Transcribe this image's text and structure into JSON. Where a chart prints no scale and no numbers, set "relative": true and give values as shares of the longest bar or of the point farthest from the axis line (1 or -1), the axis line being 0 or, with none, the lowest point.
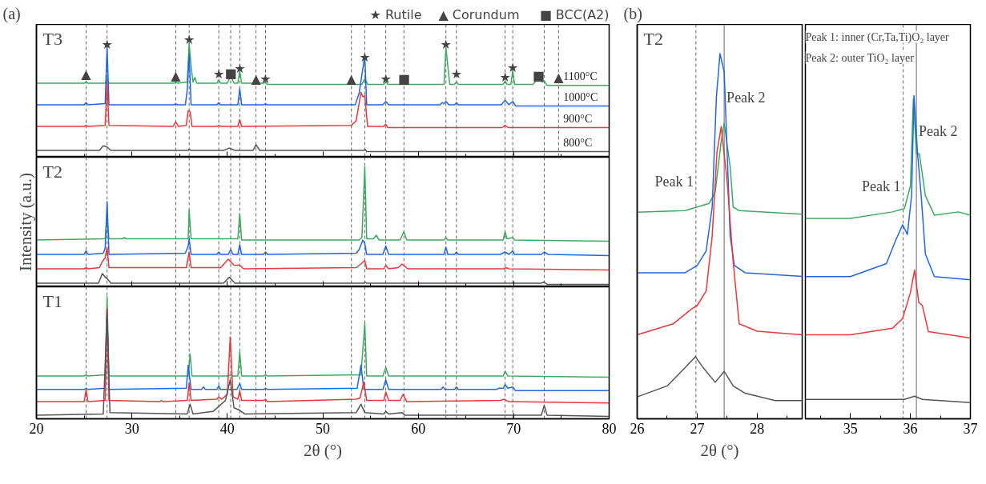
{
  "chart_data": [
    {
      "type": "line",
      "title": "(a)",
      "subtitle": "T3",
      "relative": true,
      "xlim": [
        20,
        80
      ],
      "xticks": [
        20,
        {
          "value": 25,
          "label": null
        },
        30,
        {
          "value": 35,
          "label": null
        },
        40,
        {
          "value": 45,
          "label": null
        },
        50,
        {
          "value": 55,
          "label": null
        },
        60,
        {
          "value": 65,
          "label": null
        },
        70,
        {
          "value": 75,
          "label": null
        },
        80
      ],
      "tick_labels": false,
      "annotations": [
        "★ Rutile",
        "▲ Corundum",
        "■ BCC(A2)",
        {
          "text": "▲",
          "x": 25.2,
          "y": 0.73
        },
        {
          "text": "★",
          "x": 27.4,
          "y": 0.99
        },
        {
          "text": "▲",
          "x": 34.6,
          "y": 0.72
        },
        {
          "text": "★",
          "x": 36.0,
          "y": 1.03
        },
        {
          "text": "★",
          "x": 39.1,
          "y": 0.73
        },
        {
          "text": "■",
          "x": 40.35,
          "y": 0.74
        },
        {
          "text": "★",
          "x": 41.3,
          "y": 0.78
        },
        {
          "text": "▲",
          "x": 43.0,
          "y": 0.69
        },
        {
          "text": "★",
          "x": 44.0,
          "y": 0.69
        },
        {
          "text": "▲",
          "x": 53.0,
          "y": 0.69
        },
        {
          "text": "★",
          "x": 54.4,
          "y": 0.88
        },
        {
          "text": "★",
          "x": 56.6,
          "y": 0.69
        },
        {
          "text": "■",
          "x": 58.5,
          "y": 0.69
        },
        {
          "text": "★",
          "x": 62.9,
          "y": 0.99
        },
        {
          "text": "★",
          "x": 64.0,
          "y": 0.73
        },
        {
          "text": "★",
          "x": 69.1,
          "y": 0.7
        },
        {
          "text": "★",
          "x": 69.9,
          "y": 0.79
        },
        {
          "text": "■",
          "x": 72.6,
          "y": 0.72
        },
        {
          "text": "▲",
          "x": 74.7,
          "y": 0.7
        }
      ],
      "ref_lines": [
        {
          "axis": "x",
          "value": 25.2,
          "line_style": "dashed"
        },
        {
          "axis": "x",
          "value": 27.4,
          "line_style": "dashed"
        },
        {
          "axis": "x",
          "value": 34.6,
          "line_style": "dashed"
        },
        {
          "axis": "x",
          "value": 36.0,
          "line_style": "dashed"
        },
        {
          "axis": "x",
          "value": 39.1,
          "line_style": "dashed"
        },
        {
          "axis": "x",
          "value": 40.35,
          "line_style": "dashed"
        },
        {
          "axis": "x",
          "value": 41.3,
          "line_style": "dashed"
        },
        {
          "axis": "x",
          "value": 43.0,
          "line_style": "dashed"
        },
        {
          "axis": "x",
          "value": 44.0,
          "line_style": "dashed"
        },
        {
          "axis": "x",
          "value": 53.0,
          "line_style": "dashed"
        },
        {
          "axis": "x",
          "value": 54.4,
          "line_style": "dashed"
        },
        {
          "axis": "x",
          "value": 56.6,
          "line_style": "dashed"
        },
        {
          "axis": "x",
          "value": 58.5,
          "line_style": "dashed"
        },
        {
          "axis": "x",
          "value": 62.9,
          "line_style": "dashed"
        },
        {
          "axis": "x",
          "value": 64.0,
          "line_style": "dashed"
        },
        {
          "axis": "x",
          "value": 69.1,
          "line_style": "dashed"
        },
        {
          "axis": "x",
          "value": 69.9,
          "line_style": "dashed"
        },
        {
          "axis": "x",
          "value": 73.2,
          "line_style": "dashed"
        },
        {
          "axis": "x",
          "value": 74.7,
          "line_style": "dashed"
        }
      ],
      "series": [
        {
          "name": "1100°C",
          "color": "#3daa5f",
          "x": [
            20,
            25.0,
            25.2,
            25.4,
            27.2,
            27.4,
            27.6,
            34.4,
            34.6,
            34.8,
            35.8,
            36.0,
            36.2,
            36.4,
            36.6,
            36.8,
            38.9,
            39.1,
            39.3,
            40.0,
            40.35,
            40.7,
            41.1,
            41.3,
            41.5,
            43.8,
            44.0,
            44.2,
            54.1,
            54.4,
            54.7,
            56.4,
            56.6,
            56.8,
            62.7,
            62.9,
            63.1,
            63.3,
            63.8,
            64.0,
            64.2,
            68.9,
            69.1,
            69.3,
            69.7,
            69.9,
            70.1,
            72.0,
            72.6,
            73.0,
            73.2,
            73.5,
            80
          ],
          "values": [
            0.65,
            0.65,
            0.66,
            0.65,
            0.65,
            0.69,
            0.65,
            0.65,
            0.66,
            0.65,
            0.66,
            1.0,
            0.8,
            0.66,
            0.7,
            0.65,
            0.65,
            0.68,
            0.65,
            0.65,
            0.71,
            0.65,
            0.65,
            0.76,
            0.65,
            0.65,
            0.66,
            0.64,
            0.64,
            0.69,
            0.64,
            0.64,
            0.67,
            0.64,
            0.64,
            0.96,
            0.8,
            0.64,
            0.64,
            0.66,
            0.64,
            0.64,
            0.67,
            0.64,
            0.64,
            0.76,
            0.64,
            0.64,
            0.69,
            0.66,
            0.67,
            0.63,
            0.63
          ]
        },
        {
          "name": "1000°C",
          "color": "#2166e0",
          "x": [
            20,
            25.0,
            25.2,
            25.4,
            27.2,
            27.4,
            27.6,
            34.4,
            34.6,
            34.8,
            35.6,
            35.8,
            36.0,
            36.2,
            38.9,
            39.1,
            39.3,
            41.1,
            41.3,
            41.5,
            43.8,
            44.0,
            44.2,
            53.4,
            53.8,
            54.4,
            54.6,
            56.3,
            56.6,
            56.9,
            62.3,
            62.5,
            62.7,
            62.9,
            63.2,
            63.8,
            64.0,
            64.2,
            68.7,
            69.1,
            69.5,
            69.9,
            70.2,
            80
          ],
          "values": [
            0.46,
            0.46,
            0.48,
            0.46,
            0.47,
            0.97,
            0.46,
            0.46,
            0.47,
            0.46,
            0.46,
            0.59,
            0.91,
            0.46,
            0.46,
            0.48,
            0.46,
            0.46,
            0.6,
            0.46,
            0.46,
            0.47,
            0.46,
            0.46,
            0.56,
            0.89,
            0.46,
            0.46,
            0.49,
            0.46,
            0.46,
            0.48,
            0.47,
            0.49,
            0.46,
            0.46,
            0.48,
            0.46,
            0.46,
            0.5,
            0.46,
            0.49,
            0.45,
            0.45
          ]
        },
        {
          "name": "900°C",
          "color": "#e8383d",
          "x": [
            20,
            25.0,
            25.2,
            25.4,
            27.2,
            27.4,
            27.6,
            34.3,
            34.6,
            34.9,
            35.7,
            35.9,
            36.1,
            36.3,
            38.9,
            39.1,
            39.3,
            41.1,
            41.3,
            41.5,
            53.0,
            53.5,
            54.0,
            54.2,
            54.4,
            54.7,
            56.4,
            56.6,
            56.8,
            68.8,
            69.1,
            69.4,
            80
          ],
          "values": [
            0.27,
            0.27,
            0.28,
            0.27,
            0.28,
            0.66,
            0.28,
            0.27,
            0.31,
            0.27,
            0.28,
            0.41,
            0.4,
            0.27,
            0.27,
            0.28,
            0.27,
            0.27,
            0.33,
            0.27,
            0.28,
            0.32,
            0.57,
            0.53,
            0.54,
            0.27,
            0.27,
            0.29,
            0.26,
            0.26,
            0.28,
            0.26,
            0.26
          ]
        },
        {
          "name": "800°C",
          "color": "#555555",
          "x": [
            20,
            26.6,
            27.0,
            27.4,
            27.8,
            35.9,
            36.0,
            36.2,
            39.6,
            40.2,
            40.8,
            42.7,
            43.0,
            43.4,
            54.3,
            54.45,
            54.6,
            80
          ],
          "values": [
            0.06,
            0.06,
            0.1,
            0.09,
            0.06,
            0.06,
            0.07,
            0.06,
            0.06,
            0.08,
            0.06,
            0.06,
            0.11,
            0.06,
            0.06,
            0.07,
            0.05,
            0.05
          ]
        }
      ]
    },
    {
      "type": "line",
      "subtitle": "T2",
      "ylabel": "Intensity (a.u.)",
      "relative": true,
      "xlim": [
        20,
        80
      ],
      "xticks": [
        20,
        {
          "value": 25,
          "label": null
        },
        30,
        {
          "value": 35,
          "label": null
        },
        40,
        {
          "value": 45,
          "label": null
        },
        50,
        {
          "value": 55,
          "label": null
        },
        60,
        {
          "value": 65,
          "label": null
        },
        70,
        {
          "value": 75,
          "label": null
        },
        80
      ],
      "tick_labels": false,
      "ref_lines": [
        {
          "axis": "x",
          "value": 25.2,
          "line_style": "dashed"
        },
        {
          "axis": "x",
          "value": 27.4,
          "line_style": "dashed"
        },
        {
          "axis": "x",
          "value": 34.6,
          "line_style": "dashed"
        },
        {
          "axis": "x",
          "value": 36.0,
          "line_style": "dashed"
        },
        {
          "axis": "x",
          "value": 39.1,
          "line_style": "dashed"
        },
        {
          "axis": "x",
          "value": 40.35,
          "line_style": "dashed"
        },
        {
          "axis": "x",
          "value": 41.3,
          "line_style": "dashed"
        },
        {
          "axis": "x",
          "value": 43.0,
          "line_style": "dashed"
        },
        {
          "axis": "x",
          "value": 44.0,
          "line_style": "dashed"
        },
        {
          "axis": "x",
          "value": 53.0,
          "line_style": "dashed"
        },
        {
          "axis": "x",
          "value": 54.4,
          "line_style": "dashed"
        },
        {
          "axis": "x",
          "value": 56.6,
          "line_style": "dashed"
        },
        {
          "axis": "x",
          "value": 58.5,
          "line_style": "dashed"
        },
        {
          "axis": "x",
          "value": 62.9,
          "line_style": "dashed"
        },
        {
          "axis": "x",
          "value": 64.0,
          "line_style": "dashed"
        },
        {
          "axis": "x",
          "value": 69.1,
          "line_style": "dashed"
        },
        {
          "axis": "x",
          "value": 69.9,
          "line_style": "dashed"
        },
        {
          "axis": "x",
          "value": 73.2,
          "line_style": "dashed"
        }
      ],
      "series": [
        {
          "color": "#3daa5f",
          "x": [
            20,
            27.2,
            27.4,
            27.6,
            29.0,
            29.2,
            29.4,
            35.9,
            36.0,
            36.2,
            41.1,
            41.3,
            41.5,
            53.8,
            54.1,
            54.4,
            54.6,
            55.3,
            55.6,
            55.9,
            58.1,
            58.5,
            58.8,
            62.7,
            62.9,
            63.1,
            68.9,
            69.1,
            69.3,
            69.9,
            70.1,
            80
          ],
          "values": [
            0.39,
            0.4,
            0.56,
            0.4,
            0.4,
            0.41,
            0.4,
            0.4,
            0.64,
            0.4,
            0.4,
            0.61,
            0.39,
            0.39,
            0.41,
            1.0,
            0.4,
            0.4,
            0.43,
            0.39,
            0.39,
            0.46,
            0.39,
            0.39,
            0.41,
            0.39,
            0.39,
            0.46,
            0.4,
            0.41,
            0.39,
            0.38
          ]
        },
        {
          "color": "#2166e0",
          "x": [
            20,
            25.0,
            25.2,
            25.4,
            27.0,
            27.2,
            27.4,
            27.6,
            35.6,
            35.9,
            36.0,
            36.2,
            38.9,
            39.1,
            39.3,
            40.1,
            40.35,
            40.6,
            41.1,
            41.3,
            41.5,
            43.8,
            44.0,
            44.2,
            53.5,
            53.8,
            54.2,
            54.4,
            54.6,
            56.3,
            56.6,
            56.9,
            62.7,
            62.9,
            63.1,
            63.8,
            64.0,
            64.2,
            68.6,
            69.1,
            69.5,
            69.9,
            70.1,
            72.9,
            73.2,
            73.6,
            80
          ],
          "values": [
            0.27,
            0.27,
            0.3,
            0.27,
            0.28,
            0.32,
            0.71,
            0.27,
            0.28,
            0.34,
            0.4,
            0.27,
            0.27,
            0.29,
            0.27,
            0.27,
            0.31,
            0.27,
            0.27,
            0.35,
            0.27,
            0.27,
            0.29,
            0.27,
            0.28,
            0.31,
            0.39,
            0.36,
            0.27,
            0.27,
            0.34,
            0.27,
            0.27,
            0.33,
            0.27,
            0.27,
            0.29,
            0.27,
            0.27,
            0.29,
            0.27,
            0.3,
            0.27,
            0.27,
            0.29,
            0.27,
            0.26
          ]
        },
        {
          "color": "#e8383d",
          "x": [
            20,
            25.0,
            25.2,
            25.4,
            26.6,
            26.9,
            27.2,
            27.4,
            27.6,
            35.7,
            36.0,
            36.2,
            39.3,
            40.1,
            40.7,
            41.3,
            41.7,
            53.5,
            54.0,
            54.4,
            54.6,
            56.4,
            56.6,
            56.9,
            57.9,
            58.3,
            58.9,
            69.0,
            69.2,
            69.5,
            80
          ],
          "values": [
            0.15,
            0.15,
            0.16,
            0.15,
            0.16,
            0.21,
            0.24,
            0.33,
            0.16,
            0.16,
            0.29,
            0.16,
            0.16,
            0.23,
            0.18,
            0.18,
            0.15,
            0.16,
            0.19,
            0.22,
            0.15,
            0.15,
            0.18,
            0.15,
            0.16,
            0.19,
            0.15,
            0.15,
            0.16,
            0.15,
            0.14
          ]
        },
        {
          "color": "#555555",
          "x": [
            20,
            26.5,
            26.9,
            27.2,
            27.4,
            27.8,
            39.6,
            40.2,
            40.8,
            54.3,
            54.45,
            54.6,
            72.9,
            73.2,
            73.5,
            80
          ],
          "values": [
            0.03,
            0.03,
            0.11,
            0.08,
            0.07,
            0.03,
            0.03,
            0.08,
            0.03,
            0.03,
            0.04,
            0.03,
            0.03,
            0.04,
            0.02,
            0.02
          ]
        }
      ]
    },
    {
      "type": "line",
      "subtitle": "T1",
      "xlabel": "2θ (°)",
      "relative": true,
      "xlim": [
        20,
        80
      ],
      "xticks": [
        20,
        {
          "value": 25,
          "label": null
        },
        30,
        {
          "value": 35,
          "label": null
        },
        40,
        {
          "value": 45,
          "label": null
        },
        50,
        {
          "value": 55,
          "label": null
        },
        60,
        {
          "value": 65,
          "label": null
        },
        70,
        {
          "value": 75,
          "label": null
        },
        80
      ],
      "tick_labels": "x",
      "ref_lines": [
        {
          "axis": "x",
          "value": 25.2,
          "line_style": "dashed"
        },
        {
          "axis": "x",
          "value": 27.4,
          "line_style": "dashed"
        },
        {
          "axis": "x",
          "value": 34.6,
          "line_style": "dashed"
        },
        {
          "axis": "x",
          "value": 36.0,
          "line_style": "dashed"
        },
        {
          "axis": "x",
          "value": 39.1,
          "line_style": "dashed"
        },
        {
          "axis": "x",
          "value": 40.35,
          "line_style": "dashed"
        },
        {
          "axis": "x",
          "value": 41.3,
          "line_style": "dashed"
        },
        {
          "axis": "x",
          "value": 43.0,
          "line_style": "dashed"
        },
        {
          "axis": "x",
          "value": 44.0,
          "line_style": "dashed"
        },
        {
          "axis": "x",
          "value": 53.0,
          "line_style": "dashed"
        },
        {
          "axis": "x",
          "value": 54.4,
          "line_style": "dashed"
        },
        {
          "axis": "x",
          "value": 56.6,
          "line_style": "dashed"
        },
        {
          "axis": "x",
          "value": 58.5,
          "line_style": "dashed"
        },
        {
          "axis": "x",
          "value": 62.9,
          "line_style": "dashed"
        },
        {
          "axis": "x",
          "value": 64.0,
          "line_style": "dashed"
        },
        {
          "axis": "x",
          "value": 69.1,
          "line_style": "dashed"
        },
        {
          "axis": "x",
          "value": 69.9,
          "line_style": "dashed"
        },
        {
          "axis": "x",
          "value": 73.2,
          "line_style": "dashed"
        }
      ],
      "series": [
        {
          "color": "#3daa5f",
          "x": [
            20,
            25.0,
            25.2,
            25.4,
            27.2,
            27.4,
            27.6,
            35.9,
            36.1,
            36.3,
            40.1,
            40.35,
            40.6,
            41.1,
            41.3,
            41.5,
            43.8,
            44.0,
            44.2,
            54.0,
            54.4,
            54.6,
            56.3,
            56.6,
            56.9,
            68.9,
            69.1,
            69.4,
            80
          ],
          "values": [
            0.35,
            0.35,
            0.36,
            0.35,
            0.36,
            1.0,
            0.35,
            0.35,
            0.53,
            0.35,
            0.35,
            0.36,
            0.35,
            0.35,
            0.55,
            0.35,
            0.35,
            0.36,
            0.35,
            0.36,
            0.78,
            0.35,
            0.35,
            0.42,
            0.35,
            0.35,
            0.39,
            0.35,
            0.34
          ]
        },
        {
          "color": "#2166e0",
          "x": [
            20,
            25.0,
            25.2,
            25.4,
            27.2,
            27.4,
            27.6,
            35.7,
            35.9,
            36.2,
            37.3,
            37.5,
            37.7,
            38.9,
            39.1,
            39.3,
            41.0,
            41.3,
            41.5,
            43.8,
            44.0,
            44.2,
            53.6,
            54.0,
            54.3,
            56.3,
            56.6,
            56.9,
            62.4,
            62.6,
            62.8,
            63.8,
            64.0,
            64.2,
            68.2,
            68.4,
            68.9,
            69.1,
            69.4,
            69.9,
            70.2,
            80
          ],
          "values": [
            0.24,
            0.24,
            0.25,
            0.24,
            0.25,
            0.9,
            0.24,
            0.25,
            0.44,
            0.24,
            0.24,
            0.26,
            0.24,
            0.24,
            0.27,
            0.24,
            0.24,
            0.29,
            0.24,
            0.24,
            0.25,
            0.24,
            0.25,
            0.44,
            0.24,
            0.24,
            0.32,
            0.24,
            0.24,
            0.26,
            0.24,
            0.24,
            0.26,
            0.24,
            0.24,
            0.25,
            0.25,
            0.28,
            0.25,
            0.26,
            0.23,
            0.23
          ]
        },
        {
          "color": "#e8383d",
          "x": [
            20,
            25.0,
            25.2,
            25.4,
            27.2,
            27.4,
            27.6,
            32.9,
            33.1,
            33.3,
            35.8,
            36.0,
            36.2,
            38.9,
            39.1,
            39.4,
            40.0,
            40.3,
            40.6,
            41.1,
            41.3,
            41.5,
            43.8,
            44.0,
            44.2,
            53.5,
            53.9,
            54.3,
            54.6,
            56.4,
            56.6,
            56.9,
            58.1,
            58.4,
            58.8,
            68.6,
            69.0,
            69.5,
            80
          ],
          "values": [
            0.14,
            0.14,
            0.24,
            0.14,
            0.15,
            0.9,
            0.15,
            0.14,
            0.15,
            0.14,
            0.15,
            0.29,
            0.15,
            0.16,
            0.18,
            0.16,
            0.2,
            0.67,
            0.18,
            0.16,
            0.23,
            0.15,
            0.15,
            0.16,
            0.14,
            0.16,
            0.17,
            0.3,
            0.15,
            0.15,
            0.22,
            0.15,
            0.15,
            0.2,
            0.14,
            0.15,
            0.16,
            0.14,
            0.13
          ]
        },
        {
          "color": "#555555",
          "x": [
            20,
            27.0,
            27.4,
            27.7,
            35.8,
            36.1,
            36.4,
            38.5,
            39.8,
            40.3,
            40.7,
            41.3,
            41.8,
            53.5,
            54.0,
            54.4,
            56.4,
            56.6,
            56.9,
            58.3,
            58.6,
            72.9,
            73.2,
            73.5,
            80
          ],
          "values": [
            0.03,
            0.04,
            0.85,
            0.05,
            0.04,
            0.12,
            0.04,
            0.06,
            0.15,
            0.32,
            0.09,
            0.07,
            0.04,
            0.05,
            0.12,
            0.05,
            0.04,
            0.06,
            0.04,
            0.05,
            0.03,
            0.03,
            0.11,
            0.03,
            0.02
          ]
        }
      ]
    },
    {
      "type": "line",
      "title": "(b)",
      "subtitle": "T2",
      "xlabel": "2θ (°)",
      "relative": true,
      "xlim": [
        26,
        28.75
      ],
      "xticks": [
        26,
        {
          "value": 26.5,
          "label": null
        },
        27,
        {
          "value": 27.5,
          "label": null
        },
        28,
        {
          "value": 28.5,
          "label": null
        }
      ],
      "tick_labels": "x",
      "annotations": [
        {
          "text": "Peak 1",
          "x": 26.98,
          "y": 0.58
        },
        {
          "text": "Peak 2",
          "x": 27.45,
          "y": 0.81
        }
      ],
      "ref_lines": [
        {
          "axis": "x",
          "value": 26.98,
          "line_style": "dashed"
        },
        {
          "axis": "x",
          "value": 27.45,
          "line_style": "solid"
        }
      ],
      "series": [
        {
          "color": "#3daa5f",
          "x": [
            26,
            26.8,
            27.0,
            27.2,
            27.3,
            27.4,
            27.45,
            27.55,
            27.6,
            27.7,
            28.75
          ],
          "values": [
            0.566,
            0.57,
            0.58,
            0.59,
            0.62,
            0.76,
            0.81,
            0.69,
            0.58,
            0.57,
            0.56
          ]
        },
        {
          "color": "#2166e0",
          "x": [
            26,
            26.8,
            27.0,
            27.15,
            27.25,
            27.32,
            27.38,
            27.45,
            27.5,
            27.55,
            27.62,
            27.8,
            28.75
          ],
          "values": [
            0.4,
            0.4,
            0.42,
            0.46,
            0.58,
            0.88,
            1.0,
            0.95,
            0.73,
            0.5,
            0.42,
            0.4,
            0.39
          ]
        },
        {
          "color": "#e8383d",
          "x": [
            26,
            26.6,
            26.9,
            27.0,
            27.15,
            27.25,
            27.33,
            27.4,
            27.5,
            27.6,
            27.7,
            28.0,
            28.75
          ],
          "values": [
            0.23,
            0.26,
            0.3,
            0.31,
            0.35,
            0.5,
            0.73,
            0.8,
            0.65,
            0.43,
            0.26,
            0.24,
            0.23
          ]
        },
        {
          "color": "#555555",
          "x": [
            26,
            26.5,
            26.8,
            26.97,
            27.1,
            27.3,
            27.45,
            27.6,
            27.8,
            28.3,
            28.75
          ],
          "values": [
            0.06,
            0.09,
            0.14,
            0.17,
            0.14,
            0.1,
            0.13,
            0.09,
            0.07,
            0.05,
            0.05
          ]
        }
      ]
    },
    {
      "type": "line",
      "relative": true,
      "xlim": [
        34.25,
        37
      ],
      "xticks": [
        {
          "value": 34.5,
          "label": null
        },
        35,
        {
          "value": 35.5,
          "label": null
        },
        36,
        {
          "value": 36.5,
          "label": null
        },
        37
      ],
      "tick_labels": "x",
      "annotations": [
        "Peak 1: inner (Cr,Ta,Ti)O₂ layer",
        "Peak 2: outer TiO₂ layer",
        {
          "text": "Peak 1",
          "x": 35.88,
          "y": 0.65
        },
        {
          "text": "Peak 2",
          "x": 36.1,
          "y": 0.82
        }
      ],
      "ref_lines": [
        {
          "axis": "x",
          "value": 35.88,
          "line_style": "dashed"
        },
        {
          "axis": "x",
          "value": 36.1,
          "line_style": "solid"
        }
      ],
      "series": [
        {
          "color": "#3daa5f",
          "x": [
            34.25,
            35.0,
            35.7,
            35.9,
            36.0,
            36.05,
            36.1,
            36.15,
            36.25,
            36.4,
            36.8,
            37
          ],
          "values": [
            0.62,
            0.62,
            0.64,
            0.65,
            0.72,
            0.99,
            0.82,
            0.82,
            0.69,
            0.63,
            0.64,
            0.63
          ]
        },
        {
          "color": "#2166e0",
          "x": [
            34.25,
            35.0,
            35.6,
            35.75,
            35.87,
            35.95,
            36.02,
            36.06,
            36.12,
            36.18,
            36.25,
            36.4,
            37
          ],
          "values": [
            0.44,
            0.44,
            0.48,
            0.55,
            0.6,
            0.57,
            0.69,
            1.0,
            0.82,
            0.69,
            0.51,
            0.44,
            0.43
          ]
        },
        {
          "color": "#e8383d",
          "x": [
            34.25,
            35.0,
            35.7,
            35.87,
            36.0,
            36.07,
            36.14,
            36.2,
            36.3,
            37
          ],
          "values": [
            0.26,
            0.26,
            0.28,
            0.31,
            0.39,
            0.46,
            0.36,
            0.35,
            0.27,
            0.25
          ]
        },
        {
          "color": "#555555",
          "x": [
            34.25,
            35.9,
            36.07,
            36.2,
            37
          ],
          "values": [
            0.06,
            0.06,
            0.07,
            0.06,
            0.05
          ]
        }
      ]
    }
  ]
}
